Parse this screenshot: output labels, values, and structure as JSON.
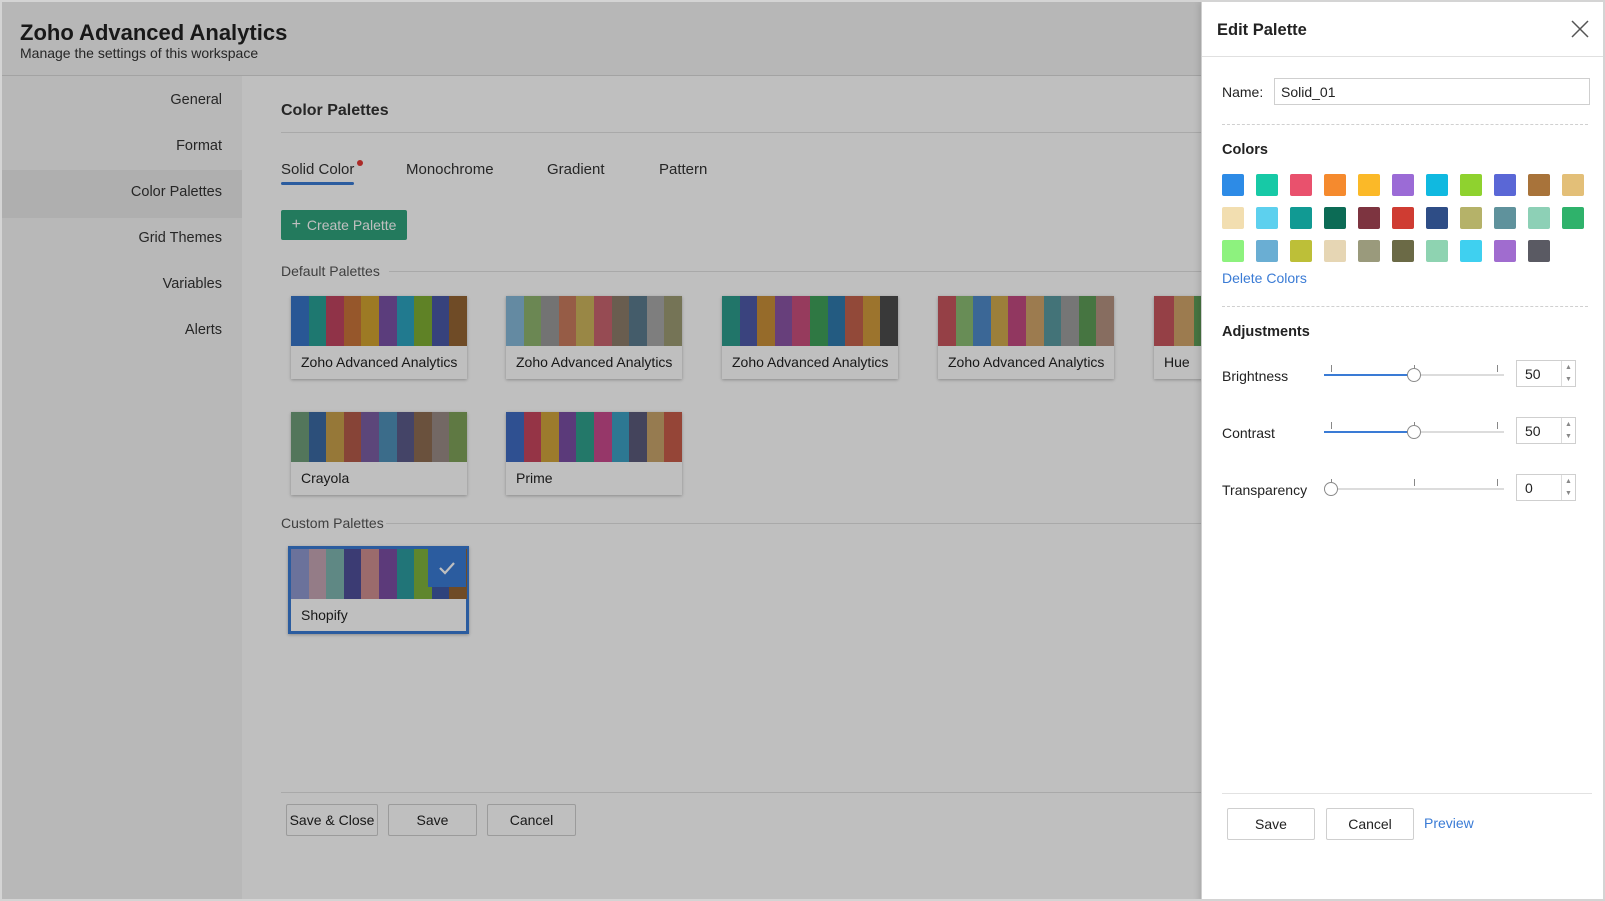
{
  "header": {
    "title": "Zoho Advanced Analytics",
    "subtitle": "Manage the settings of this workspace"
  },
  "sidebar": {
    "items": [
      {
        "label": "General"
      },
      {
        "label": "Format"
      },
      {
        "label": "Color Palettes",
        "active": true
      },
      {
        "label": "Grid Themes"
      },
      {
        "label": "Variables"
      },
      {
        "label": "Alerts"
      }
    ]
  },
  "main": {
    "section_title": "Color Palettes",
    "tabs": [
      {
        "label": "Solid Color",
        "active": true
      },
      {
        "label": "Monochrome"
      },
      {
        "label": "Gradient"
      },
      {
        "label": "Pattern"
      }
    ],
    "create_button": "Create Palette",
    "default_label": "Default Palettes",
    "custom_label": "Custom Palettes",
    "default_palettes": [
      {
        "name": "Zoho Advanced Analytics",
        "colors": [
          "#3775c7",
          "#28a196",
          "#c14460",
          "#c8743a",
          "#d2a330",
          "#7a52a6",
          "#2ca3bf",
          "#7fae33",
          "#4a58a6",
          "#956433"
        ]
      },
      {
        "name": "Zoho Advanced Analytics",
        "colors": [
          "#86b8d8",
          "#8fb56f",
          "#9a9a9a",
          "#c97b5e",
          "#cdb45c",
          "#c8646f",
          "#8c7d6a",
          "#5b7b8e",
          "#a9a9a9",
          "#9c9b73"
        ]
      },
      {
        "name": "Zoho Advanced Analytics",
        "colors": [
          "#2c9c8c",
          "#4e5aa8",
          "#c98f38",
          "#8a54a4",
          "#c94f7d",
          "#3fa05a",
          "#2f7aad",
          "#c3624d",
          "#d09b3d",
          "#4d4d4d"
        ]
      },
      {
        "name": "Zoho Advanced Analytics",
        "colors": [
          "#c7565e",
          "#8bbd73",
          "#4f8ac9",
          "#d0aa4e",
          "#c24a80",
          "#d0a46a",
          "#5a9aa0",
          "#9e9e9e",
          "#5e9d57",
          "#b59280"
        ]
      },
      {
        "name": "Hue",
        "colors": [
          "#c7565e",
          "#d0a46a",
          "#5e9d57"
        ]
      },
      {
        "name": "Crayola",
        "colors": [
          "#6f9e7a",
          "#3b6aa3",
          "#c9a04b",
          "#b55b4a",
          "#7b5ea3",
          "#4f91b8",
          "#5b5b8a",
          "#8e6c52",
          "#9a8b86",
          "#7fa25a"
        ]
      },
      {
        "name": "Prime",
        "colors": [
          "#3f6bc2",
          "#c7465e",
          "#d0a43d",
          "#7a4ea3",
          "#2fa08c",
          "#c84a8c",
          "#3da0c3",
          "#5b5b7b",
          "#c9a46b",
          "#c75c4a"
        ]
      }
    ],
    "custom_palettes": [
      {
        "name": "Shopify",
        "selected": true,
        "colors": [
          "#8f98cf",
          "#c6a6b4",
          "#7fb6b0",
          "#4f4f9a",
          "#cf8f90",
          "#7b4ea3",
          "#2d9da0",
          "#7fb33c",
          "#3f5aa6",
          "#956433"
        ]
      }
    ],
    "buttons": {
      "save_close": "Save & Close",
      "save": "Save",
      "cancel": "Cancel"
    }
  },
  "drawer": {
    "title": "Edit Palette",
    "name_label": "Name:",
    "name_value": "Solid_01",
    "colors_label": "Colors",
    "colors": [
      [
        "#2d8be6",
        "#17c9a6",
        "#e9516d",
        "#f58a2e",
        "#fbb928",
        "#9b6bd6",
        "#10b9e0",
        "#8fd22f",
        "#5a67d6",
        "#a8733a",
        "#e3bf78"
      ],
      [
        "#f2deb0",
        "#5dd0ee",
        "#119a93",
        "#0c6b55",
        "#7d3440",
        "#cf3c32",
        "#2e4d86",
        "#b5b269",
        "#5f929c",
        "#8dd0b6",
        "#2fb26b"
      ],
      [
        "#8df27e",
        "#6aaed3",
        "#bdbf38",
        "#e6d6b4",
        "#9a9a7c",
        "#6b6a46",
        "#8ed3b1",
        "#3fd0f0",
        "#a06ccf",
        "#5a5a63"
      ]
    ],
    "delete_colors": "Delete Colors",
    "adjustments_label": "Adjustments",
    "adjustments": [
      {
        "label": "Brightness",
        "value": "50",
        "level": 0.5
      },
      {
        "label": "Contrast",
        "value": "50",
        "level": 0.5
      },
      {
        "label": "Transparency",
        "value": "0",
        "level": 0
      }
    ],
    "save": "Save",
    "cancel": "Cancel",
    "preview": "Preview"
  },
  "colors": {
    "accent": "#3a7bd5",
    "create_button": "#2fa37d"
  }
}
